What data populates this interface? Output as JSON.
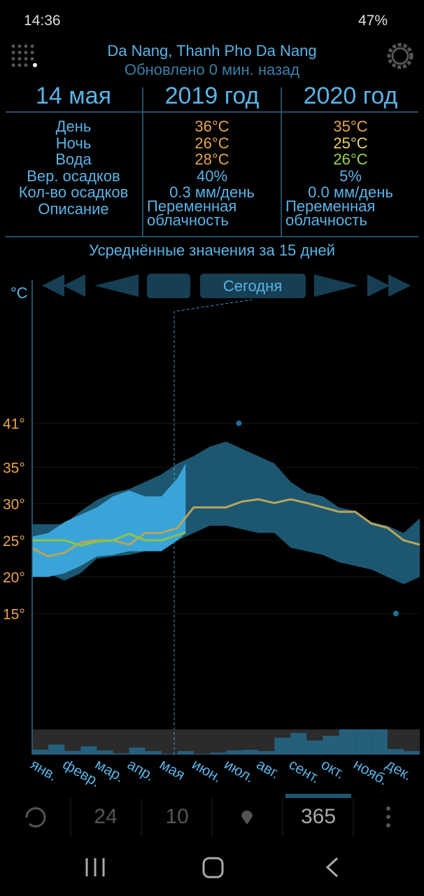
{
  "status_bar": {
    "time": "14:36",
    "battery": "47%"
  },
  "header": {
    "location": "Da Nang, Thanh Pho Da Nang",
    "updated": "Обновлено 0 мин. назад"
  },
  "table": {
    "columns": [
      "14 мая",
      "2019 год",
      "2020 год"
    ],
    "rows": [
      {
        "label": "День",
        "y2019": "36°C",
        "y2020": "35°C",
        "c2019": "#e8a54e",
        "c2020": "#e8a54e"
      },
      {
        "label": "Ночь",
        "y2019": "26°C",
        "y2020": "25°C",
        "c2019": "#e8a54e",
        "c2020": "#e6cf6a"
      },
      {
        "label": "Вода",
        "y2019": "28°C",
        "y2020": "26°C",
        "c2019": "#e8a54e",
        "c2020": "#9bd34a"
      },
      {
        "label": "Вер. осадков",
        "y2019": "40%",
        "y2020": "5%",
        "c2019": "#5bb3e6",
        "c2020": "#5bb3e6"
      },
      {
        "label": "Кол-во осадков",
        "y2019": "0.3 мм/день",
        "y2020": "0.0 мм/день",
        "c2019": "#5bb3e6",
        "c2020": "#5bb3e6"
      },
      {
        "label": "Описание",
        "y2019": "Переменная облачность",
        "y2020": "Переменная облачность",
        "c2019": "#5bb3e6",
        "c2020": "#5bb3e6"
      }
    ]
  },
  "averages": "Усреднённые значения за 15 дней",
  "today_button": "Сегодня",
  "chart": {
    "unit": "°C",
    "xlim": [
      0,
      12
    ],
    "ylim": [
      -4,
      60
    ],
    "yticks": [
      {
        "value": 41,
        "label": "41°"
      },
      {
        "value": 35,
        "label": "35°"
      },
      {
        "value": 30,
        "label": "30°"
      },
      {
        "value": 25,
        "label": "25°"
      },
      {
        "value": 20,
        "label": "20°"
      },
      {
        "value": 15,
        "label": "15°"
      }
    ],
    "months": [
      "янв.",
      "февр.",
      "мар.",
      "апр.",
      "мая",
      "июн.",
      "июл.",
      "авг.",
      "сент.",
      "окт.",
      "нояб.",
      "дек."
    ],
    "x": [
      0,
      0.5,
      1,
      1.5,
      2,
      2.5,
      3,
      3.5,
      4,
      4.5,
      5,
      5.5,
      6,
      6.5,
      7,
      7.5,
      8,
      8.5,
      9,
      9.5,
      10,
      10.5,
      11,
      11.5,
      12
    ],
    "band_2020": {
      "color": "#1d5670",
      "upper": [
        27.2,
        27.2,
        27.2,
        29,
        30.5,
        31.5,
        32,
        33,
        34,
        35.5,
        36.5,
        37.8,
        38.5,
        37.5,
        36.5,
        35.5,
        33,
        31.5,
        31,
        29.5,
        29,
        27.5,
        27,
        26,
        28
      ],
      "lower": [
        21,
        20.5,
        19.5,
        20.5,
        22.5,
        22.8,
        23,
        23.5,
        24,
        25,
        26,
        27,
        27,
        26.5,
        26,
        26,
        24,
        23.5,
        23,
        22,
        21.5,
        21,
        20,
        19,
        20
      ]
    },
    "average": {
      "color": "#b8a55a",
      "values": [
        23.9,
        22.8,
        23.3,
        24.7,
        25,
        25,
        24.4,
        26,
        26,
        26.7,
        29.5,
        29.5,
        29.5,
        30.3,
        30.6,
        30.1,
        30.6,
        30.1,
        29.5,
        28.9,
        28.9,
        27.3,
        26.7,
        25,
        24.4
      ]
    },
    "x_2019": [
      0,
      0.5,
      1,
      1.5,
      2,
      2.5,
      3,
      3.5,
      4,
      4.5,
      4.75
    ],
    "band_2019": {
      "color": "#3aa4d8",
      "upper": [
        25.5,
        26,
        27.5,
        28.5,
        29.5,
        31,
        31.8,
        31,
        31,
        33.5,
        35.5
      ],
      "lower": [
        20,
        20,
        20.5,
        21.5,
        22.8,
        23,
        23.5,
        23.5,
        23.5,
        25,
        26
      ]
    },
    "line_2019": {
      "color": "#8bc34a",
      "values": [
        25,
        25,
        25,
        24.3,
        24.8,
        25,
        25.9,
        25,
        25,
        25.7,
        26.1
      ]
    },
    "points": {
      "color": "#1d6f9a",
      "x": [
        6.4,
        11.26
      ],
      "values": [
        41,
        15
      ]
    },
    "precip": {
      "ylim": [
        0,
        1
      ],
      "color": "#245f7c",
      "values": [
        0.2,
        0.4,
        0.15,
        0.33,
        0.17,
        0.05,
        0.28,
        0.14,
        0.03,
        0.14,
        0.03,
        0.08,
        0.17,
        0.19,
        0.14,
        0.67,
        0.86,
        0.56,
        0.75,
        1,
        1,
        1,
        0.22,
        0.14
      ]
    }
  },
  "bottom_bar": {
    "items": [
      "24",
      "10",
      "365"
    ]
  }
}
